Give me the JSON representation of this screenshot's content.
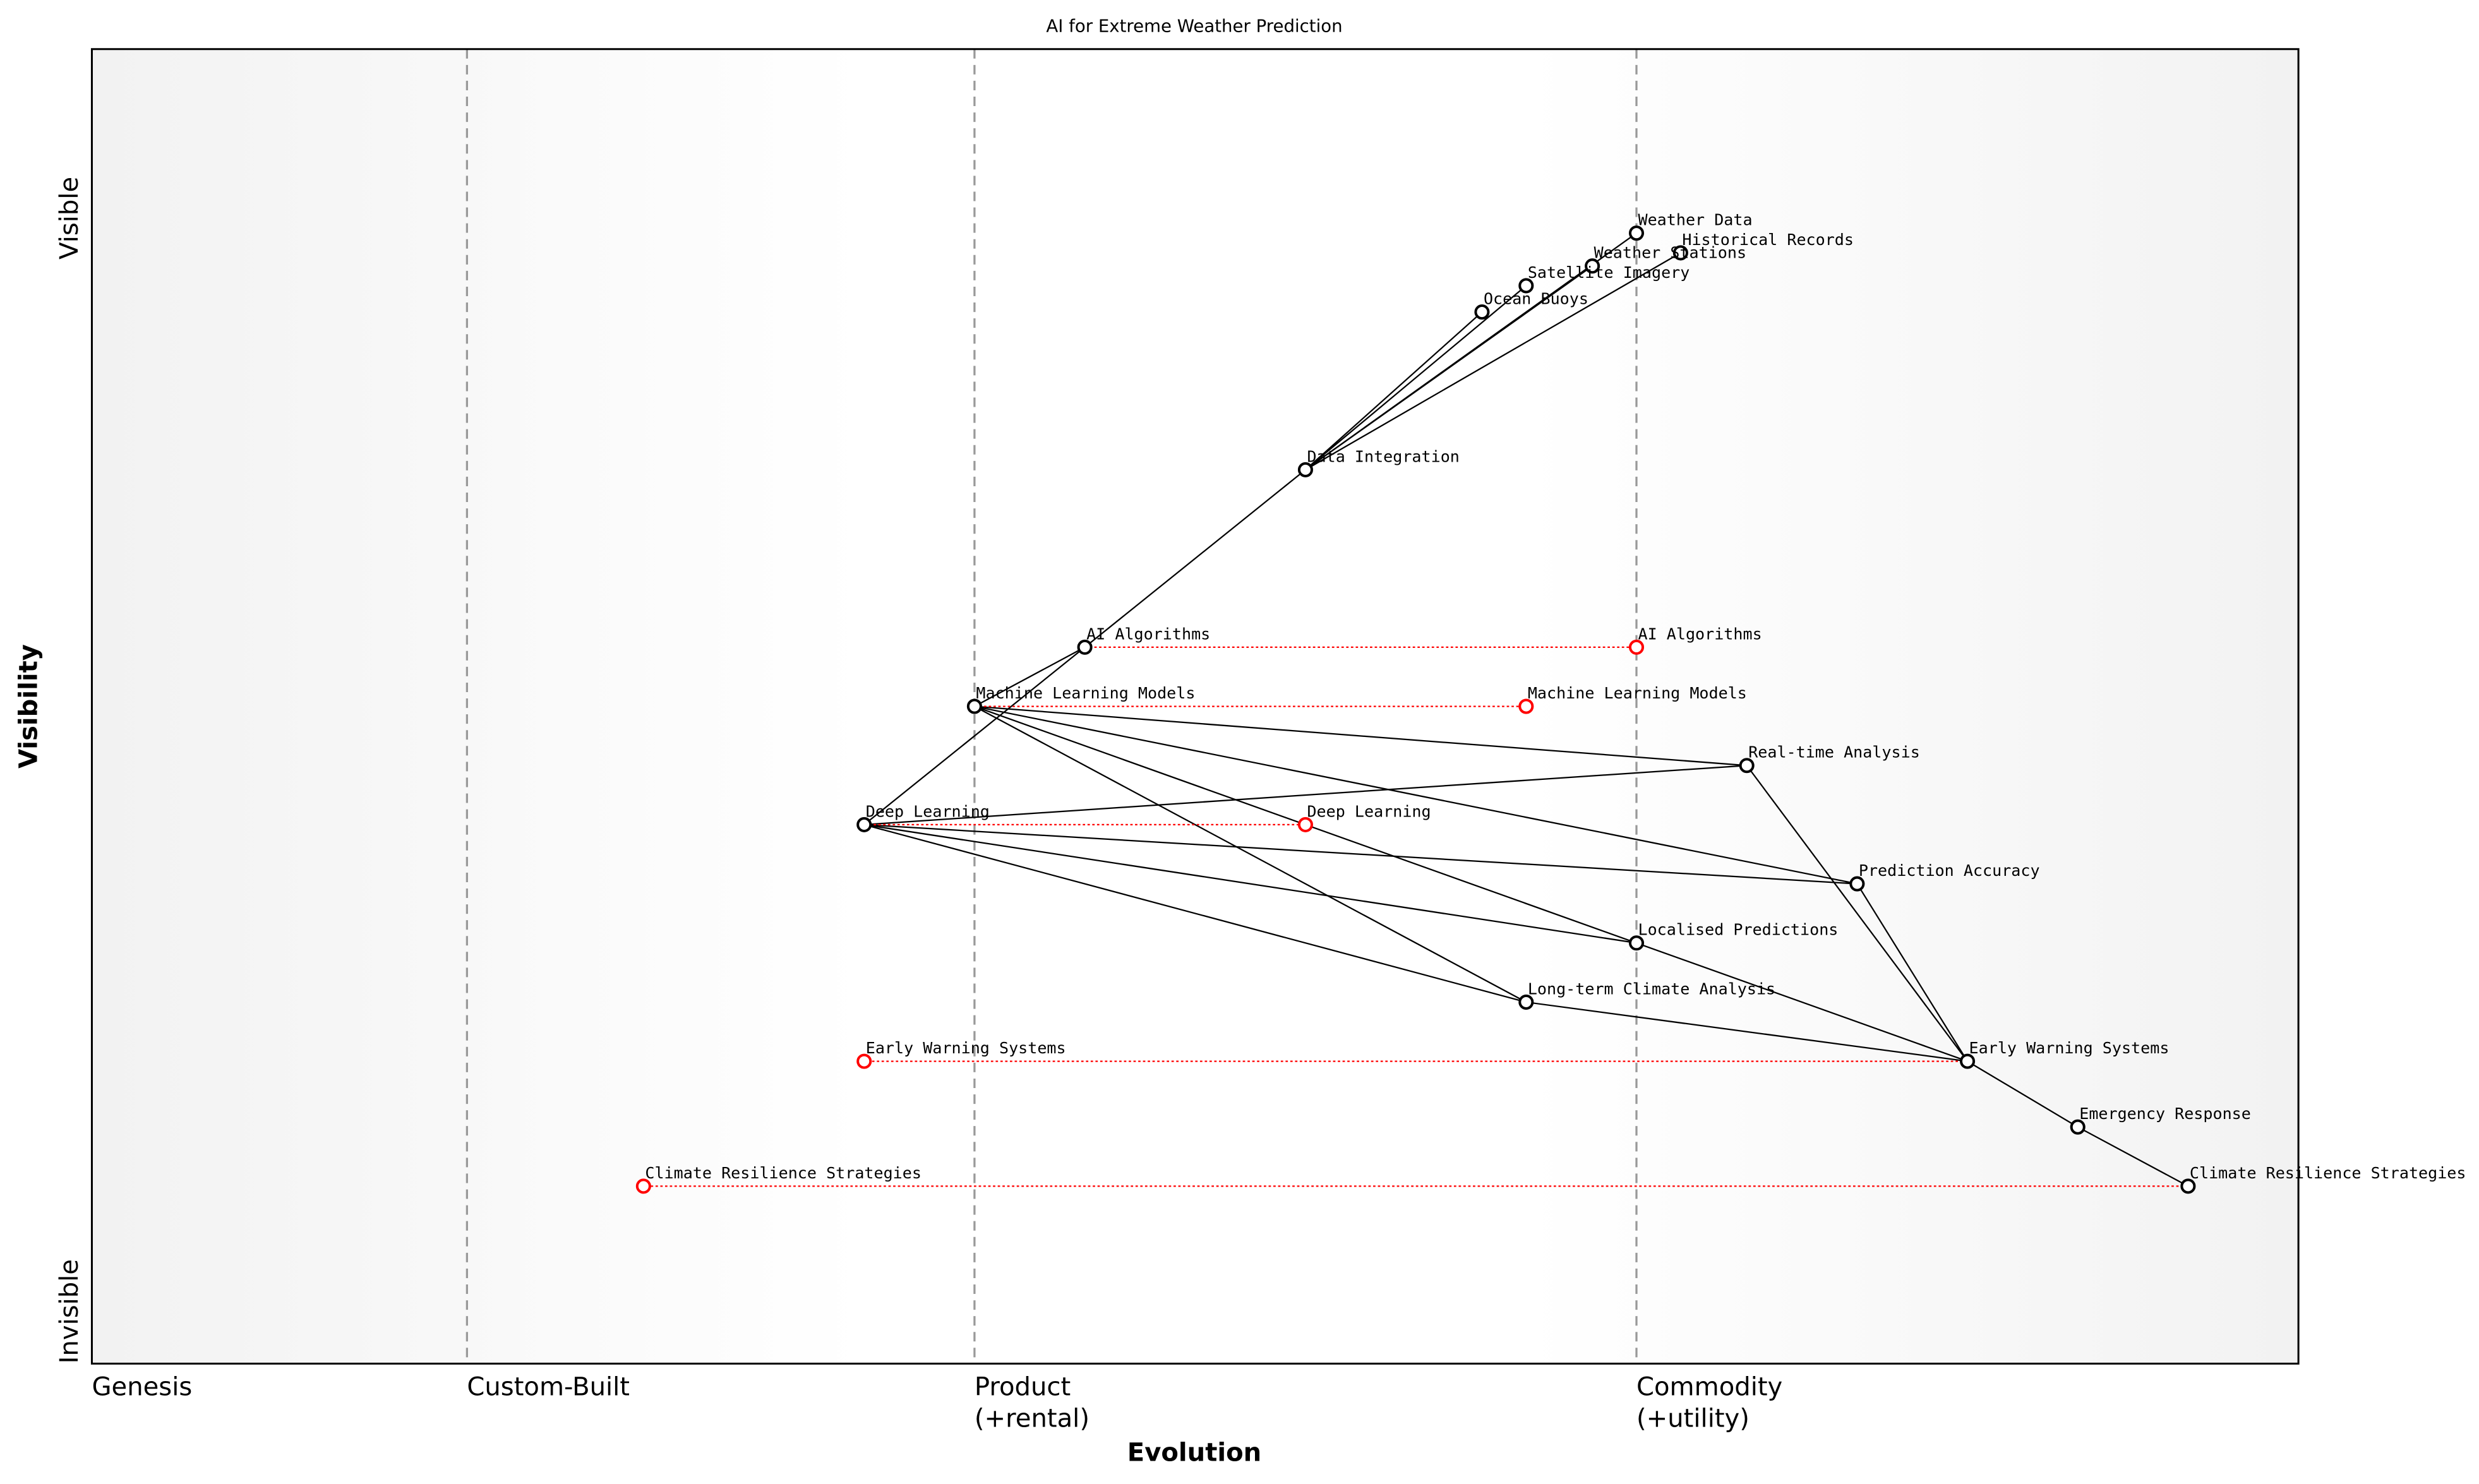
{
  "chart_data": {
    "type": "wardley",
    "title": "AI for Extreme Weather Prediction",
    "x_label": "Evolution",
    "y_label": "Visibility",
    "xlim": [
      0,
      1
    ],
    "ylim": [
      0,
      1
    ],
    "xticks": [
      {
        "value": 0,
        "label": "Genesis"
      },
      {
        "value": 0.17,
        "label": "Custom-Built"
      },
      {
        "value": 0.4,
        "label": "Product\n(+rental)"
      },
      {
        "value": 0.7,
        "label": "Commodity\n(+utility)"
      }
    ],
    "yticks": [
      {
        "value": 0,
        "label": "Invisible"
      },
      {
        "value": 0.84,
        "label": "Visible"
      }
    ],
    "components": [
      {
        "name": "Weather Data",
        "x": 0.7,
        "y": 0.86
      },
      {
        "name": "Historical Records",
        "x": 0.72,
        "y": 0.845
      },
      {
        "name": "Weather Stations",
        "x": 0.68,
        "y": 0.835
      },
      {
        "name": "Satellite Imagery",
        "x": 0.65,
        "y": 0.82
      },
      {
        "name": "Ocean Buoys",
        "x": 0.63,
        "y": 0.8
      },
      {
        "name": "Data Integration",
        "x": 0.55,
        "y": 0.68
      },
      {
        "name": "AI Algorithms",
        "x": 0.45,
        "y": 0.545
      },
      {
        "name": "Machine Learning Models",
        "x": 0.4,
        "y": 0.5
      },
      {
        "name": "Real-time Analysis",
        "x": 0.75,
        "y": 0.455
      },
      {
        "name": "Deep Learning",
        "x": 0.35,
        "y": 0.41
      },
      {
        "name": "Prediction Accuracy",
        "x": 0.8,
        "y": 0.365
      },
      {
        "name": "Localised Predictions",
        "x": 0.7,
        "y": 0.32
      },
      {
        "name": "Long-term Climate Analysis",
        "x": 0.65,
        "y": 0.275
      },
      {
        "name": "Early Warning Systems",
        "x": 0.85,
        "y": 0.23
      },
      {
        "name": "Emergency Response",
        "x": 0.9,
        "y": 0.18
      },
      {
        "name": "Climate Resilience Strategies",
        "x": 0.95,
        "y": 0.135
      }
    ],
    "evolve": [
      {
        "name": "AI Algorithms",
        "x": 0.7
      },
      {
        "name": "Machine Learning Models",
        "x": 0.65
      },
      {
        "name": "Deep Learning",
        "x": 0.55
      },
      {
        "name": "Early Warning Systems",
        "x": 0.35
      },
      {
        "name": "Climate Resilience Strategies",
        "x": 0.25
      }
    ],
    "links": [
      [
        "Data Integration",
        "Weather Data"
      ],
      [
        "Data Integration",
        "Historical Records"
      ],
      [
        "Data Integration",
        "Weather Stations"
      ],
      [
        "Data Integration",
        "Satellite Imagery"
      ],
      [
        "Data Integration",
        "Ocean Buoys"
      ],
      [
        "AI Algorithms",
        "Data Integration"
      ],
      [
        "Machine Learning Models",
        "AI Algorithms"
      ],
      [
        "Deep Learning",
        "AI Algorithms"
      ],
      [
        "Machine Learning Models",
        "Real-time Analysis"
      ],
      [
        "Machine Learning Models",
        "Prediction Accuracy"
      ],
      [
        "Machine Learning Models",
        "Localised Predictions"
      ],
      [
        "Machine Learning Models",
        "Long-term Climate Analysis"
      ],
      [
        "Deep Learning",
        "Real-time Analysis"
      ],
      [
        "Deep Learning",
        "Prediction Accuracy"
      ],
      [
        "Deep Learning",
        "Localised Predictions"
      ],
      [
        "Deep Learning",
        "Long-term Climate Analysis"
      ],
      [
        "Real-time Analysis",
        "Early Warning Systems"
      ],
      [
        "Prediction Accuracy",
        "Early Warning Systems"
      ],
      [
        "Localised Predictions",
        "Early Warning Systems"
      ],
      [
        "Long-term Climate Analysis",
        "Early Warning Systems"
      ],
      [
        "Early Warning Systems",
        "Emergency Response"
      ],
      [
        "Emergency Response",
        "Climate Resilience Strategies"
      ]
    ],
    "component_color": "#000000",
    "evolve_color": "#ff0000"
  }
}
